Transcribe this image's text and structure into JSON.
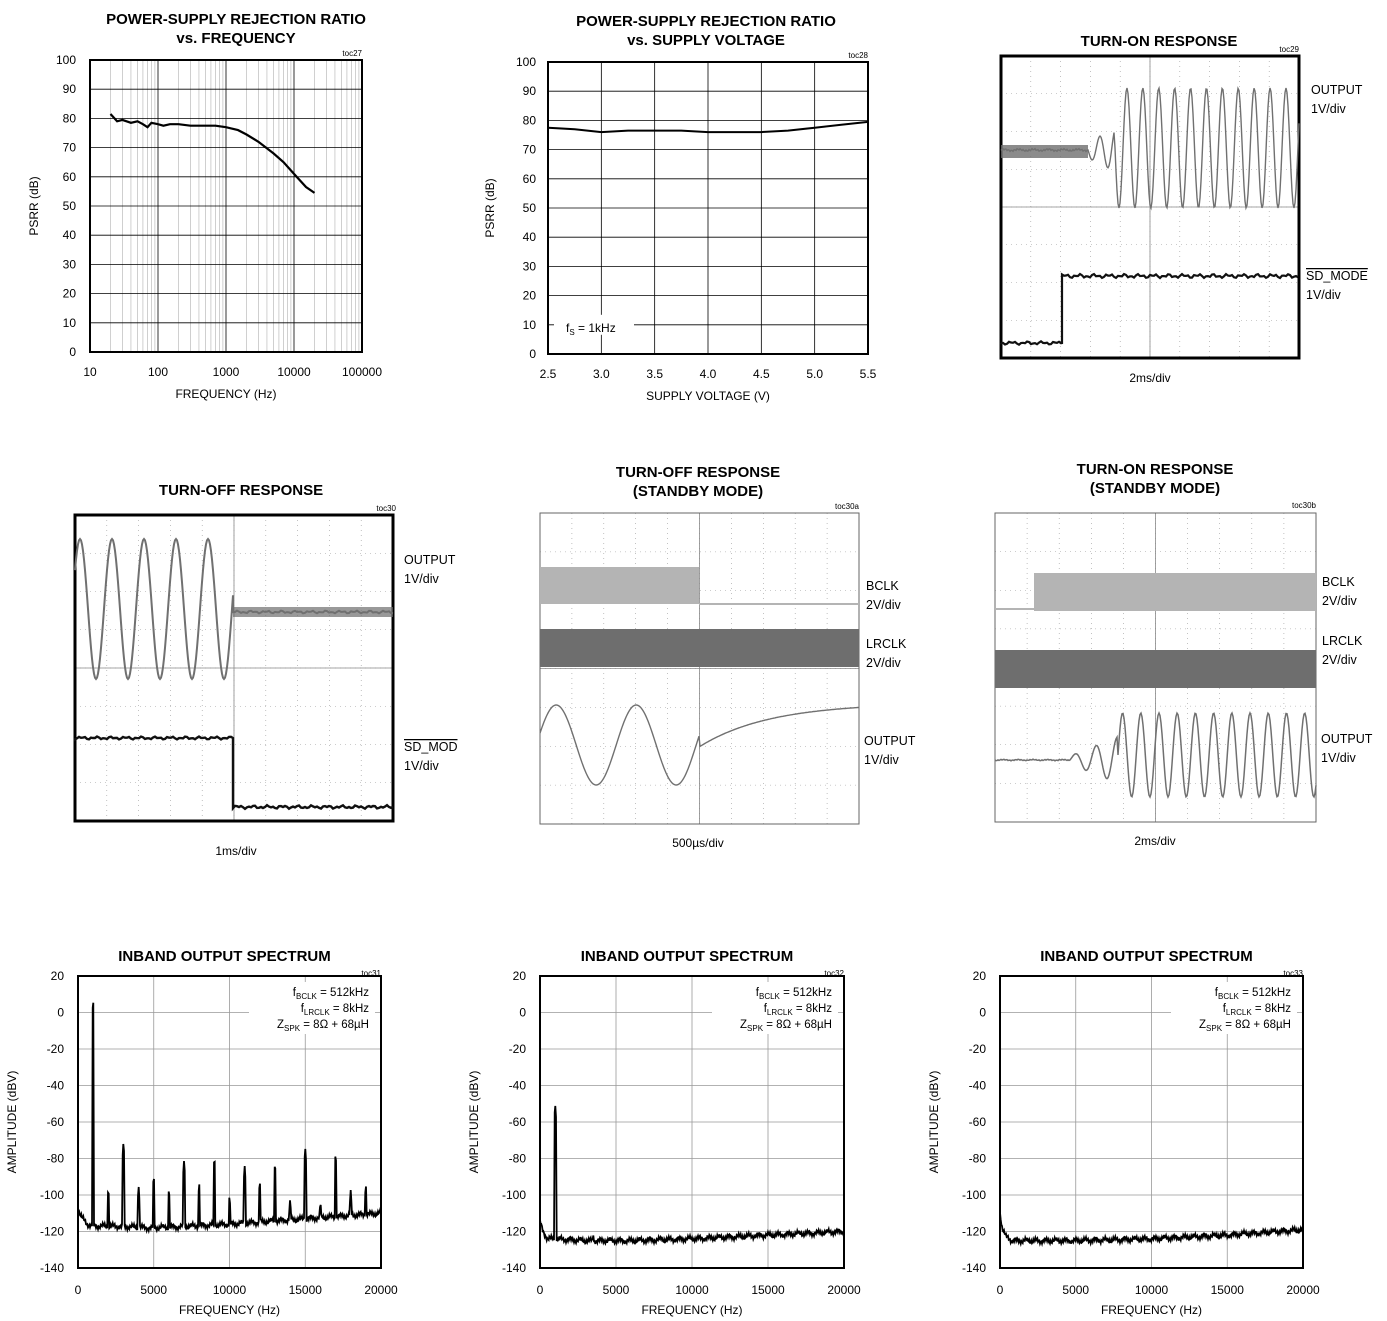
{
  "colors": {
    "trace": "#000000",
    "scope_trace": "#707070",
    "scope_light": "#b4b4b4",
    "scope_dark": "#6e6e6e",
    "grid": "#000000",
    "scope_grid": "#9a9a9a"
  },
  "charts": [
    {
      "tag": "toc27",
      "title": [
        "POWER-SUPPLY REJECTION RATIO",
        "vs. FREQUENCY"
      ],
      "xlabel": "FREQUENCY (Hz)",
      "ylabel": "PSRR (dB)",
      "xticks": [
        "10",
        "100",
        "1000",
        "10000",
        "100000"
      ],
      "yticks": [
        "0",
        "10",
        "20",
        "30",
        "40",
        "50",
        "60",
        "70",
        "80",
        "90",
        "100"
      ]
    },
    {
      "tag": "toc28",
      "title": [
        "POWER-SUPPLY REJECTION RATIO",
        "vs. SUPPLY VOLTAGE"
      ],
      "xlabel": "SUPPLY VOLTAGE (V)",
      "ylabel": "PSRR (dB)",
      "xticks": [
        "2.5",
        "3.0",
        "3.5",
        "4.0",
        "4.5",
        "5.0",
        "5.5"
      ],
      "yticks": [
        "0",
        "10",
        "20",
        "30",
        "40",
        "50",
        "60",
        "70",
        "80",
        "90",
        "100"
      ],
      "annotation": {
        "main": "f",
        "sub": "S",
        "rest": " = 1kHz"
      }
    },
    {
      "tag": "toc29",
      "title": [
        "TURN-ON RESPONSE"
      ],
      "xlabel": "2ms/div",
      "labels": [
        [
          "OUTPUT",
          "1V/div"
        ],
        [
          "SD_MODE",
          "1V/div"
        ]
      ]
    },
    {
      "tag": "toc30",
      "title": [
        "TURN-OFF RESPONSE"
      ],
      "xlabel": "1ms/div",
      "labels": [
        [
          "OUTPUT",
          "1V/div"
        ],
        [
          "SD_MOD",
          "1V/div"
        ]
      ]
    },
    {
      "tag": "toc30a",
      "title": [
        "TURN-OFF RESPONSE",
        "(STANDBY MODE)"
      ],
      "xlabel": "500µs/div",
      "labels": [
        [
          "BCLK",
          "2V/div"
        ],
        [
          "LRCLK",
          "2V/div"
        ],
        [
          "OUTPUT",
          "1V/div"
        ]
      ]
    },
    {
      "tag": "toc30b",
      "title": [
        "TURN-ON RESPONSE",
        "(STANDBY MODE)"
      ],
      "xlabel": "2ms/div",
      "labels": [
        [
          "BCLK",
          "2V/div"
        ],
        [
          "LRCLK",
          "2V/div"
        ],
        [
          "OUTPUT",
          "1V/div"
        ]
      ]
    },
    {
      "tag": "toc31",
      "title": [
        "INBAND OUTPUT SPECTRUM"
      ],
      "xlabel": "FREQUENCY (Hz)",
      "ylabel": "AMPLITUDE (dBV)",
      "xticks": [
        "0",
        "5000",
        "10000",
        "15000",
        "20000"
      ],
      "yticks": [
        "-140",
        "-120",
        "-100",
        "-80",
        "-60",
        "-40",
        "-20",
        "0",
        "20"
      ],
      "notes": [
        {
          "main": "f",
          "sub": "BCLK",
          "rest": " = 512kHz"
        },
        {
          "main": "f",
          "sub": "LRCLK",
          "rest": " = 8kHz"
        },
        {
          "main": "Z",
          "sub": "SPK",
          "rest": " = 8Ω + 68µH"
        }
      ]
    },
    {
      "tag": "toc32",
      "title": [
        "INBAND OUTPUT SPECTRUM"
      ],
      "xlabel": "FREQUENCY (Hz)",
      "ylabel": "AMPLITUDE (dBV)",
      "xticks": [
        "0",
        "5000",
        "10000",
        "15000",
        "20000"
      ],
      "yticks": [
        "-140",
        "-120",
        "-100",
        "-80",
        "-60",
        "-40",
        "-20",
        "0",
        "20"
      ],
      "notes": [
        {
          "main": "f",
          "sub": "BCLK",
          "rest": " = 512kHz"
        },
        {
          "main": "f",
          "sub": "LRCLK",
          "rest": " = 8kHz"
        },
        {
          "main": "Z",
          "sub": "SPK",
          "rest": " = 8Ω + 68µH"
        }
      ]
    },
    {
      "tag": "toc33",
      "title": [
        "INBAND OUTPUT SPECTRUM"
      ],
      "xlabel": "FREQUENCY (Hz)",
      "ylabel": "AMPLITUDE (dBV)",
      "xticks": [
        "0",
        "5000",
        "10000",
        "15000",
        "20000"
      ],
      "yticks": [
        "-140",
        "-120",
        "-100",
        "-80",
        "-60",
        "-40",
        "-20",
        "0",
        "20"
      ],
      "notes": [
        {
          "main": "f",
          "sub": "BCLK",
          "rest": " = 512kHz"
        },
        {
          "main": "f",
          "sub": "LRCLK",
          "rest": " = 8kHz"
        },
        {
          "main": "Z",
          "sub": "SPK",
          "rest": " = 8Ω + 68µH"
        }
      ]
    }
  ],
  "chart_data": [
    {
      "type": "line",
      "title": "POWER-SUPPLY REJECTION RATIO vs. FREQUENCY",
      "xlabel": "FREQUENCY (Hz)",
      "ylabel": "PSRR (dB)",
      "xscale": "log",
      "xlim": [
        10,
        100000
      ],
      "ylim": [
        0,
        100
      ],
      "grid": true,
      "x": [
        20,
        25,
        30,
        40,
        50,
        60,
        70,
        80,
        100,
        120,
        150,
        200,
        300,
        400,
        500,
        700,
        1000,
        1500,
        2000,
        3000,
        5000,
        7000,
        10000,
        15000,
        20000
      ],
      "y": [
        81.5,
        79,
        79.5,
        78.5,
        79,
        78,
        77,
        78.5,
        78,
        77.5,
        78,
        78,
        77.5,
        77.5,
        77.5,
        77.5,
        77,
        76,
        74.5,
        72,
        68,
        65,
        61,
        56.5,
        54.5
      ]
    },
    {
      "type": "line",
      "title": "POWER-SUPPLY REJECTION RATIO vs. SUPPLY VOLTAGE",
      "xlabel": "SUPPLY VOLTAGE (V)",
      "ylabel": "PSRR (dB)",
      "xlim": [
        2.5,
        5.5
      ],
      "ylim": [
        0,
        100
      ],
      "grid": true,
      "x": [
        2.5,
        2.75,
        3.0,
        3.25,
        3.5,
        3.75,
        4.0,
        4.25,
        4.5,
        4.75,
        5.0,
        5.25,
        5.5
      ],
      "y": [
        77.5,
        77,
        76,
        76.5,
        76.5,
        76.5,
        76,
        76,
        76,
        76.5,
        77.5,
        78.5,
        79.5
      ]
    },
    {
      "type": "line",
      "title": "INBAND OUTPUT SPECTRUM",
      "xlabel": "FREQUENCY (Hz)",
      "ylabel": "AMPLITUDE (dBV)",
      "xlim": [
        0,
        20000
      ],
      "ylim": [
        -140,
        20
      ],
      "grid": true,
      "floor": {
        "x": [
          0,
          300,
          600,
          1000,
          2000,
          5000,
          10000,
          15000,
          20000
        ],
        "y": [
          -108,
          -113,
          -116,
          -117,
          -117,
          -118,
          -116,
          -113,
          -110
        ]
      },
      "peaks": {
        "x": [
          1000,
          2000,
          3000,
          4000,
          5000,
          6000,
          7000,
          8000,
          9000,
          10000,
          11000,
          12000,
          13000,
          14000,
          15000,
          16000,
          17000,
          18000,
          19000
        ],
        "y": [
          7,
          -96,
          -71,
          -95,
          -89,
          -96,
          -81,
          -93,
          -79,
          -100,
          -84,
          -92,
          -82,
          -102,
          -74,
          -103,
          -77,
          -97,
          -94
        ]
      }
    },
    {
      "type": "line",
      "title": "INBAND OUTPUT SPECTRUM",
      "xlabel": "FREQUENCY (Hz)",
      "ylabel": "AMPLITUDE (dBV)",
      "xlim": [
        0,
        20000
      ],
      "ylim": [
        -140,
        20
      ],
      "grid": true,
      "floor": {
        "x": [
          0,
          200,
          500,
          1000,
          3000,
          6000,
          10000,
          15000,
          20000
        ],
        "y": [
          -115,
          -120,
          -124,
          -124,
          -125,
          -125,
          -124,
          -122,
          -120
        ]
      },
      "peaks": {
        "x": [
          1000,
          3500,
          8000,
          14500
        ],
        "y": [
          -50,
          -121,
          -121,
          -119
        ]
      }
    },
    {
      "type": "line",
      "title": "INBAND OUTPUT SPECTRUM",
      "xlabel": "FREQUENCY (Hz)",
      "ylabel": "AMPLITUDE (dBV)",
      "xlim": [
        0,
        20000
      ],
      "ylim": [
        -140,
        20
      ],
      "grid": true,
      "floor": {
        "x": [
          0,
          150,
          400,
          800,
          2000,
          5000,
          10000,
          15000,
          20000
        ],
        "y": [
          -110,
          -118,
          -123,
          -125,
          -125,
          -125,
          -124,
          -122,
          -119
        ]
      },
      "peaks": {
        "x": [],
        "y": []
      }
    }
  ]
}
